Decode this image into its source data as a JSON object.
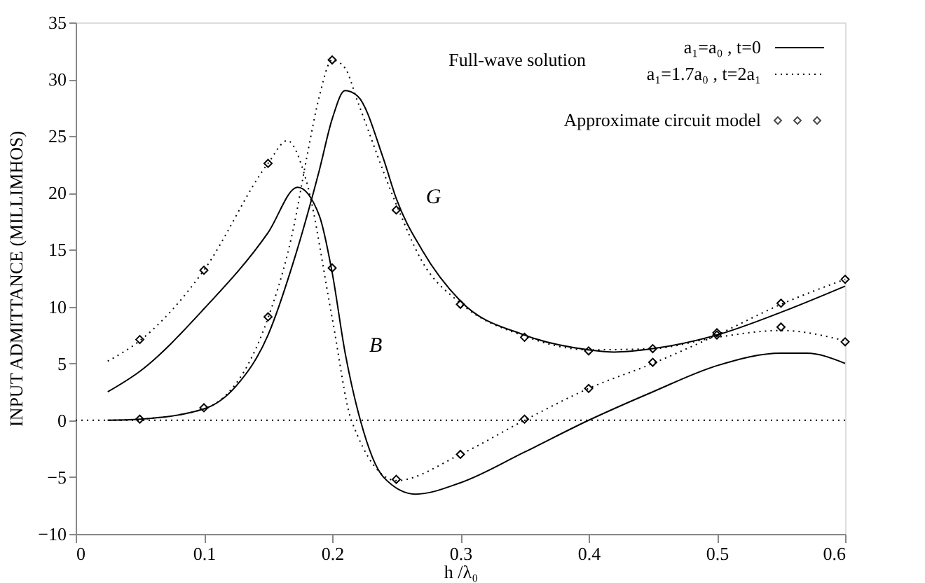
{
  "chart_data": {
    "type": "line",
    "xlabel": "h /λ₀",
    "ylabel": "INPUT ADMITTANCE (MILLIMHOS)",
    "legend_title": "Full-wave solution",
    "legend": "top right",
    "grid": false,
    "xlim": [
      0,
      0.6
    ],
    "xticks": [
      0,
      0.1,
      0.2,
      0.3,
      0.4,
      0.5,
      0.6
    ],
    "ylim": [
      -10,
      35
    ],
    "yticks": [
      -10,
      -5,
      0,
      5,
      10,
      15,
      20,
      25,
      30,
      35
    ],
    "series": [
      {
        "name": "a₁=a₀ , t=0",
        "line_style": "solid",
        "marker": "none",
        "color": "#000000",
        "x": [
          0.025,
          0.05,
          0.1,
          0.125,
          0.15,
          0.17,
          0.19,
          0.2,
          0.21,
          0.22,
          0.24,
          0.25,
          0.27,
          0.3,
          0.35,
          0.4,
          0.42,
          0.45,
          0.5,
          0.55,
          0.6
        ],
        "values": [
          0,
          0.1,
          1,
          3,
          7.5,
          14,
          22,
          26.5,
          29,
          28.5,
          23,
          19.5,
          15,
          10.5,
          7.5,
          6.2,
          6.0,
          6.3,
          7.5,
          9.5,
          11.8
        ]
      },
      {
        "name": "a₁=1.7a₀ , t=2a₁",
        "line_style": "dotted",
        "marker": "none",
        "color": "#000000",
        "x": [
          0.025,
          0.05,
          0.1,
          0.15,
          0.17,
          0.18,
          0.19,
          0.2,
          0.21,
          0.22,
          0.25,
          0.27,
          0.3,
          0.35,
          0.4,
          0.45,
          0.5,
          0.55,
          0.6
        ],
        "values": [
          0,
          0.1,
          1,
          9,
          17,
          23,
          28.5,
          31.7,
          31,
          28,
          19,
          14,
          10.3,
          7.4,
          6.2,
          6.3,
          7.3,
          7.9,
          7
        ]
      },
      {
        "line_style": "solid",
        "marker": "none",
        "color": "#000000",
        "x": [
          0.025,
          0.05,
          0.1,
          0.15,
          0.173,
          0.19,
          0.2,
          0.21,
          0.222,
          0.24,
          0.265,
          0.3,
          0.35,
          0.4,
          0.45,
          0.5,
          0.55,
          0.57,
          0.6
        ],
        "values": [
          2.5,
          4.3,
          9.8,
          16.5,
          20.5,
          18,
          13,
          6,
          0,
          -5,
          -6.5,
          -5.5,
          -2.8,
          0,
          2.5,
          4.8,
          5.9,
          5.9,
          5
        ]
      },
      {
        "line_style": "dotted",
        "marker": "none",
        "color": "#000000",
        "x": [
          0.025,
          0.05,
          0.1,
          0.15,
          0.165,
          0.18,
          0.2,
          0.215,
          0.25,
          0.3,
          0.35,
          0.4,
          0.45,
          0.5,
          0.55,
          0.6
        ],
        "values": [
          5.2,
          7,
          13.2,
          22.6,
          24.6,
          21,
          9,
          0,
          -5.3,
          -3,
          0,
          2.8,
          5,
          7.5,
          10.2,
          12.4
        ]
      },
      {
        "name": "Approximate circuit model",
        "type": "scatter",
        "marker": "diamond",
        "color": "#000000",
        "x": [
          0.05,
          0.05,
          0.1,
          0.1,
          0.15,
          0.15,
          0.2,
          0.2,
          0.25,
          0.25,
          0.3,
          0.3,
          0.35,
          0.35,
          0.4,
          0.4,
          0.45,
          0.45,
          0.5,
          0.5,
          0.55,
          0.55,
          0.6,
          0.6
        ],
        "values": [
          7.1,
          0.1,
          13.2,
          1.1,
          22.6,
          9.1,
          31.7,
          13.4,
          18.5,
          -5.2,
          10.2,
          -3,
          7.3,
          0.1,
          6.1,
          2.8,
          6.3,
          5.1,
          7.7,
          7.5,
          10.3,
          8.2,
          12.4,
          6.9
        ]
      }
    ],
    "ref_lines": [
      {
        "axis": "y",
        "value": 0,
        "line_style": "dotted",
        "color": "#000000"
      }
    ],
    "annotations": [
      "G",
      "B"
    ]
  }
}
